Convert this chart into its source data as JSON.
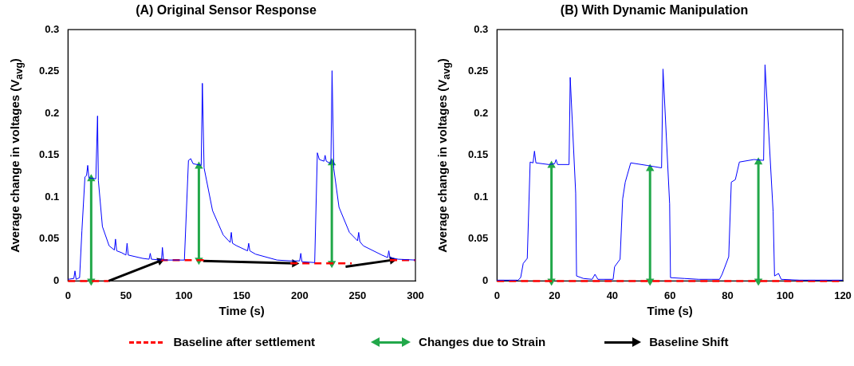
{
  "chart_data": [
    {
      "type": "line",
      "title": "(A) Original Sensor Response",
      "xlabel": "Time (s)",
      "ylabel": "Average change in voltages (V$_{avg}$)",
      "xlim": [
        0,
        300
      ],
      "xticks": [
        0,
        50,
        100,
        150,
        200,
        250,
        300
      ],
      "ylim": [
        0,
        0.3
      ],
      "yticks": [
        0,
        0.05,
        0.1,
        0.15,
        0.2,
        0.25,
        0.3
      ],
      "grid": false,
      "legend": "bottom",
      "series": [
        {
          "color": "#0000ff",
          "line_style": "solid",
          "marker": "none",
          "x": [
            0,
            5,
            6,
            7,
            10,
            12,
            14.6,
            16,
            17,
            18,
            24,
            25.5,
            26.2,
            29.7,
            35.5,
            40,
            41,
            42,
            46,
            50,
            51,
            52,
            64.5,
            70,
            71,
            72,
            80.7,
            81.5,
            82.5,
            100.5,
            104,
            106,
            108,
            115,
            116,
            117.5,
            124.8,
            134,
            140,
            141,
            142,
            145.7,
            155,
            156,
            157,
            162,
            180.5,
            192,
            200,
            201,
            202,
            213,
            215.3,
            217,
            221,
            222,
            223,
            227,
            228,
            229.5,
            234,
            243,
            250,
            251,
            252,
            255,
            271,
            276,
            277,
            278,
            285,
            300
          ],
          "values": [
            0.002,
            0.003,
            0.012,
            0.002,
            0.004,
            0.06,
            0.124,
            0.126,
            0.138,
            0.123,
            0.122,
            0.197,
            0.12,
            0.065,
            0.042,
            0.037,
            0.05,
            0.036,
            0.034,
            0.031,
            0.045,
            0.031,
            0.027,
            0.026,
            0.033,
            0.026,
            0.025,
            0.04,
            0.025,
            0.025,
            0.144,
            0.146,
            0.14,
            0.138,
            0.236,
            0.135,
            0.084,
            0.055,
            0.046,
            0.058,
            0.045,
            0.042,
            0.036,
            0.045,
            0.036,
            0.032,
            0.025,
            0.024,
            0.024,
            0.033,
            0.023,
            0.022,
            0.153,
            0.145,
            0.143,
            0.15,
            0.143,
            0.14,
            0.251,
            0.134,
            0.088,
            0.058,
            0.048,
            0.058,
            0.047,
            0.042,
            0.031,
            0.028,
            0.036,
            0.028,
            0.026,
            0.025
          ]
        },
        {
          "name": "Baseline after settlement",
          "color": "#ff0000",
          "line_style": "dashed",
          "marker": "none",
          "x": [
            0,
            35,
            57,
            80,
            120,
            156,
            192,
            245,
            261,
            278,
            300
          ],
          "values": [
            0,
            0,
            null,
            0.025,
            0.025,
            null,
            0.021,
            0.021,
            null,
            0.025,
            0.025
          ]
        },
        {
          "name": "Changes due to Strain",
          "color": "#22a84a",
          "line_style": "solid",
          "marker": "triangle",
          "x": [
            20,
            20,
            66,
            113,
            113,
            170,
            227.8,
            227.8
          ],
          "values": [
            0,
            0.122,
            null,
            0.025,
            0.137,
            null,
            0.021,
            0.141
          ]
        },
        {
          "name": "Baseline Shift",
          "color": "#000000",
          "line_style": "solid",
          "marker": "triangle",
          "x": [
            35,
            79.6,
            98,
            116.7,
            195.6,
            218,
            239.7,
            280
          ],
          "values": [
            0,
            0.024,
            null,
            0.024,
            0.021,
            null,
            0.017,
            0.025
          ]
        }
      ]
    },
    {
      "type": "line",
      "title": "(B) With Dynamic Manipulation",
      "xlabel": "Time (s)",
      "ylabel": "Average change in voltages (V$_{avg}$)",
      "xlim": [
        0,
        120
      ],
      "xticks": [
        0,
        20,
        40,
        60,
        80,
        100,
        120
      ],
      "ylim": [
        0,
        0.3
      ],
      "yticks": [
        0,
        0.05,
        0.1,
        0.15,
        0.2,
        0.25,
        0.3
      ],
      "grid": false,
      "series": [
        {
          "color": "#0000ff",
          "line_style": "solid",
          "marker": "none",
          "x": [
            0,
            7.3,
            8.2,
            9.1,
            10.5,
            11.5,
            12.5,
            13,
            13.5,
            18,
            20,
            20.5,
            21,
            25,
            25.4,
            27.3,
            27.6,
            30,
            33,
            34,
            35,
            40.3,
            40.8,
            42.7,
            43.6,
            44.5,
            46.4,
            52,
            57.1,
            57.6,
            59.9,
            60.2,
            65,
            70,
            77.2,
            78.1,
            80.4,
            81.3,
            82.7,
            84.1,
            89.2,
            92.5,
            93,
            95.8,
            96.3,
            97.7,
            98.6,
            105,
            120
          ],
          "values": [
            0.001,
            0.001,
            0.004,
            0.021,
            0.027,
            0.142,
            0.141,
            0.155,
            0.141,
            0.139,
            0.14,
            0.145,
            0.139,
            0.139,
            0.243,
            0.105,
            0.006,
            0.003,
            0.002,
            0.008,
            0.002,
            0.002,
            0.017,
            0.026,
            0.098,
            0.118,
            0.141,
            0.138,
            0.135,
            0.253,
            0.092,
            0.004,
            0.003,
            0.002,
            0.002,
            0.008,
            0.029,
            0.118,
            0.121,
            0.142,
            0.145,
            0.144,
            0.258,
            0.083,
            0.006,
            0.009,
            0.002,
            0.001,
            0.001
          ]
        },
        {
          "color": "#ff0000",
          "line_style": "dashed",
          "marker": "none",
          "x": [
            0,
            120
          ],
          "values": [
            0,
            0
          ]
        },
        {
          "color": "#22a84a",
          "line_style": "solid",
          "marker": "triangle",
          "x": [
            18.9,
            18.9,
            36,
            53.1,
            53.1,
            72,
            90.7,
            90.7
          ],
          "values": [
            0,
            0.138,
            null,
            0,
            0.134,
            null,
            0,
            0.142
          ]
        }
      ]
    }
  ]
}
